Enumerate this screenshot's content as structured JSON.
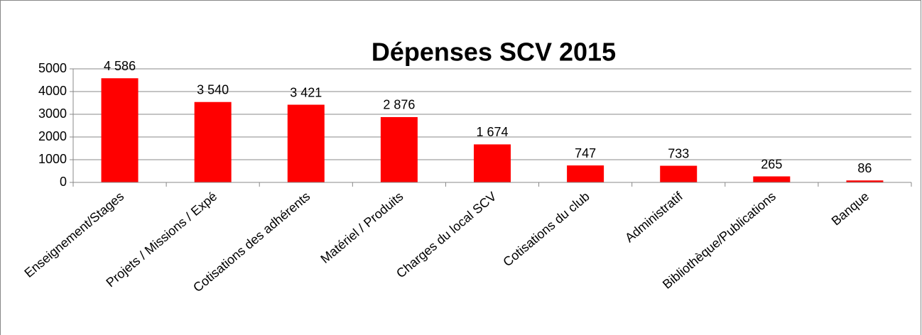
{
  "chart_data": {
    "type": "bar",
    "title": "Dépenses SCV 2015",
    "categories": [
      "Enseignement/Stages",
      "Projets / Missions / Expé",
      "Cotisations des adhérents",
      "Matériel / Produits",
      "Charges du local SCV",
      "Cotisations du club",
      "Administratif",
      "Bibliothèque/Publications",
      "Banque"
    ],
    "values": [
      4586,
      3540,
      3421,
      2876,
      1674,
      747,
      733,
      265,
      86
    ],
    "value_labels": [
      "4 586",
      "3 540",
      "3 421",
      "2 876",
      "1 674",
      "747",
      "733",
      "265",
      "86"
    ],
    "color": "#ff0000",
    "ylim": [
      0,
      5000
    ],
    "yticks": [
      0,
      1000,
      2000,
      3000,
      4000,
      5000
    ],
    "grid": true
  }
}
